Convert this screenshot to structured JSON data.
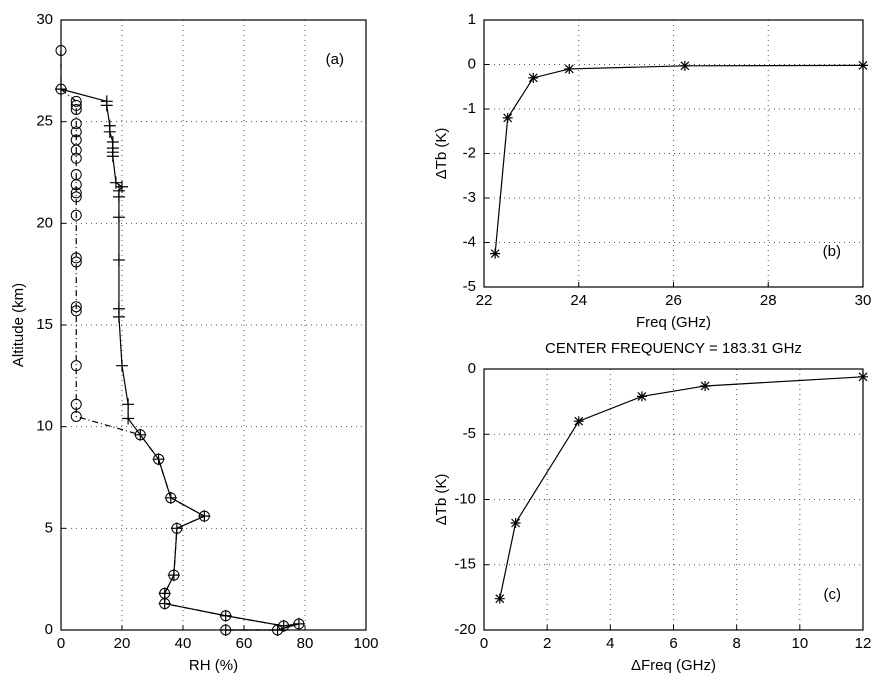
{
  "chart_data": [
    {
      "type": "line",
      "annotation": "(a)",
      "xlabel": "RH (%)",
      "ylabel": "Altitude (km)",
      "xlim": [
        0,
        100
      ],
      "xticks": [
        0,
        20,
        40,
        60,
        80,
        100
      ],
      "ylim": [
        0,
        30
      ],
      "yticks": [
        0,
        5,
        10,
        15,
        20,
        25,
        30
      ],
      "grid": true,
      "series": [
        {
          "color": "#000000",
          "marker": "+",
          "linestyle": "solid",
          "x": [
            0,
            15,
            15,
            16,
            16,
            17,
            17,
            17,
            17,
            18,
            20,
            19,
            19,
            19,
            19,
            19,
            19,
            20,
            22,
            22,
            26,
            32,
            36,
            47,
            38,
            37,
            34,
            34,
            54,
            73,
            78,
            71,
            54
          ],
          "values": [
            26.6,
            26.0,
            25.8,
            24.8,
            24.5,
            24.0,
            23.7,
            23.5,
            23.3,
            22.0,
            21.8,
            21.6,
            21.3,
            20.3,
            18.2,
            15.8,
            15.4,
            13.0,
            11.1,
            10.4,
            9.6,
            8.4,
            6.5,
            5.6,
            5.0,
            2.7,
            1.8,
            1.3,
            0.7,
            0.2,
            0.3,
            0.0,
            0.0
          ]
        },
        {
          "color": "#000000",
          "marker": "o",
          "linestyle": "dashdot",
          "x": [
            0,
            0,
            5,
            5,
            5,
            5,
            5,
            5,
            5,
            5,
            5,
            5,
            5,
            5,
            5,
            5,
            5,
            5,
            5,
            5,
            5,
            5,
            26,
            32,
            36,
            47,
            38,
            37,
            34,
            34,
            54,
            73,
            78,
            71,
            54
          ],
          "values": [
            28.5,
            26.6,
            26.0,
            25.8,
            25.6,
            24.9,
            24.5,
            24.1,
            23.6,
            23.2,
            22.4,
            21.9,
            21.5,
            21.3,
            20.4,
            18.3,
            18.1,
            15.9,
            15.7,
            13.0,
            11.1,
            10.5,
            9.6,
            8.4,
            6.5,
            5.6,
            5.0,
            2.7,
            1.8,
            1.3,
            0.7,
            0.2,
            0.3,
            0.0,
            0.0
          ]
        }
      ]
    },
    {
      "type": "line",
      "annotation": "(b)",
      "xlabel": "Freq (GHz)",
      "ylabel": "ΔTb (K)",
      "xlim": [
        22,
        30
      ],
      "xticks": [
        22,
        24,
        26,
        28,
        30
      ],
      "ylim": [
        -5,
        1
      ],
      "yticks": [
        -5,
        -4,
        -3,
        -2,
        -1,
        0,
        1
      ],
      "grid": true,
      "series": [
        {
          "color": "#000000",
          "marker": "*",
          "linestyle": "solid",
          "x": [
            22.235,
            22.5,
            23.04,
            23.8,
            26.24,
            30
          ],
          "values": [
            -4.25,
            -1.2,
            -0.3,
            -0.1,
            -0.03,
            -0.02
          ]
        }
      ]
    },
    {
      "type": "line",
      "title": "CENTER FREQUENCY = 183.31 GHz",
      "annotation": "(c)",
      "xlabel": "ΔFreq (GHz)",
      "ylabel": "ΔTb (K)",
      "xlim": [
        0,
        12
      ],
      "xticks": [
        0,
        2,
        4,
        6,
        8,
        10,
        12
      ],
      "ylim": [
        -20,
        0
      ],
      "yticks": [
        -20,
        -15,
        -10,
        -5,
        0
      ],
      "grid": true,
      "series": [
        {
          "color": "#000000",
          "marker": "*",
          "linestyle": "solid",
          "x": [
            0.5,
            1,
            3,
            5,
            7,
            12
          ],
          "values": [
            -17.6,
            -11.8,
            -4.0,
            -2.1,
            -1.3,
            -0.6
          ]
        }
      ]
    }
  ]
}
